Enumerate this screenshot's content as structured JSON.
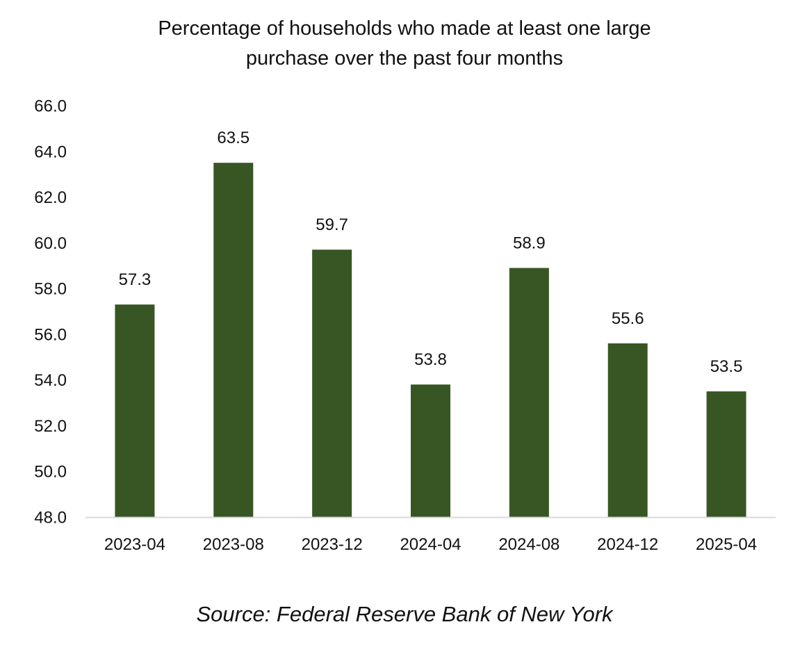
{
  "chart_data": {
    "type": "bar",
    "title_lines": [
      "Percentage of households who made at least one large",
      "purchase over the past four months"
    ],
    "categories": [
      "2023-04",
      "2023-08",
      "2023-12",
      "2024-04",
      "2024-08",
      "2024-12",
      "2025-04"
    ],
    "values": [
      57.3,
      63.5,
      59.7,
      53.8,
      58.9,
      55.6,
      53.5
    ],
    "data_labels": [
      "57.3",
      "63.5",
      "59.7",
      "53.8",
      "58.9",
      "55.6",
      "53.5"
    ],
    "ylim": [
      48.0,
      66.0
    ],
    "yticks": [
      "48.0",
      "50.0",
      "52.0",
      "54.0",
      "56.0",
      "58.0",
      "60.0",
      "62.0",
      "64.0",
      "66.0"
    ],
    "xlabel": "",
    "ylabel": "",
    "grid": false,
    "legend": "none",
    "bar_color": "#375623",
    "axis_color": "#d9d9d9"
  },
  "source": "Source: Federal Reserve Bank of New York"
}
